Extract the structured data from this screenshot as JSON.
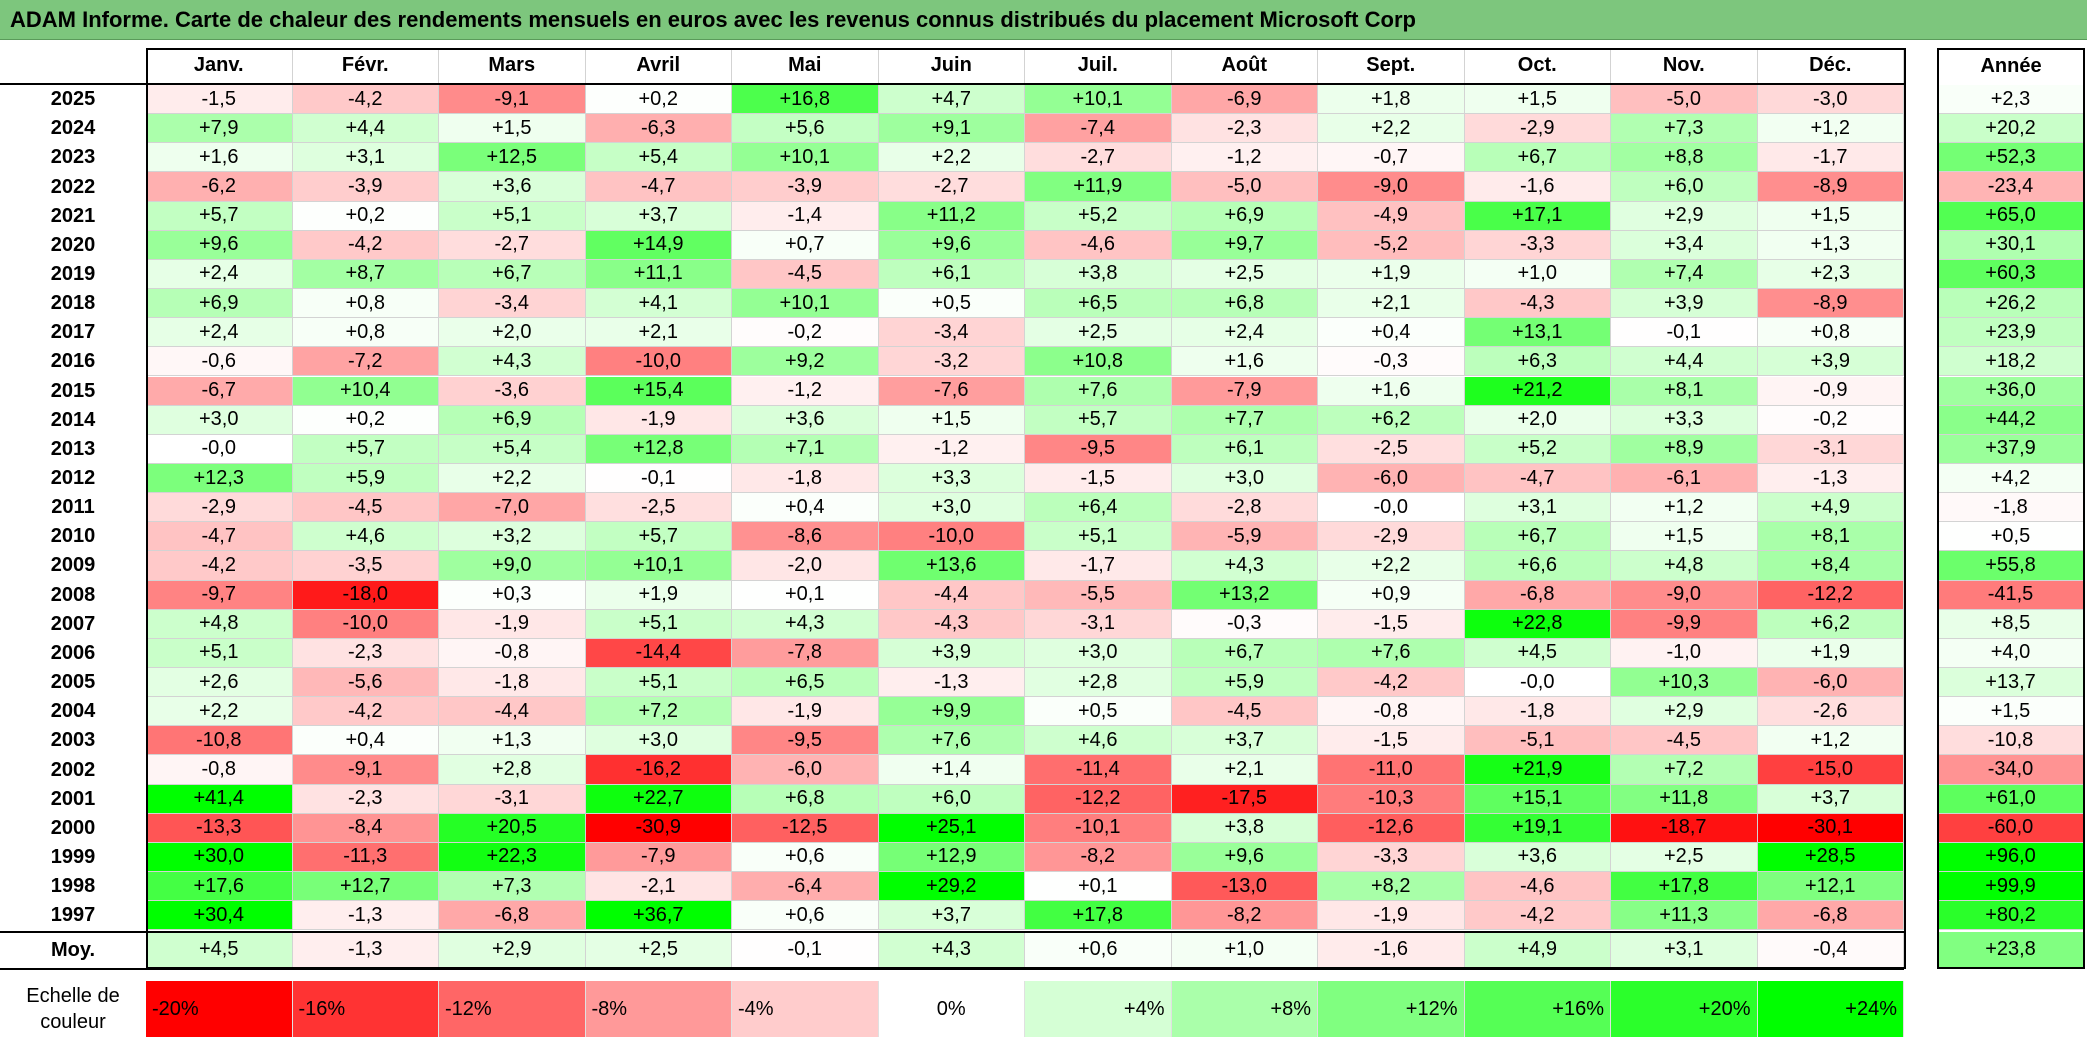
{
  "title": "ADAM Informe. Carte de chaleur des rendements mensuels en euros avec les revenus connus distribués du placement Microsoft Corp",
  "chart_data": {
    "type": "heatmap",
    "title": "ADAM Informe. Carte de chaleur des rendements mensuels en euros avec les revenus connus distribués du placement Microsoft Corp",
    "columns": [
      "Janv.",
      "Févr.",
      "Mars",
      "Avril",
      "Mai",
      "Juin",
      "Juil.",
      "Août",
      "Sept.",
      "Oct.",
      "Nov.",
      "Déc."
    ],
    "year_column_label": "Année",
    "rows": [
      {
        "year": "2025",
        "values": [
          "-1,5",
          "-4,2",
          "-9,1",
          "+0,2",
          "+16,8",
          "+4,7",
          "+10,1",
          "-6,9",
          "+1,8",
          "+1,5",
          "-5,0",
          "-3,0"
        ],
        "annual": "+2,3"
      },
      {
        "year": "2024",
        "values": [
          "+7,9",
          "+4,4",
          "+1,5",
          "-6,3",
          "+5,6",
          "+9,1",
          "-7,4",
          "-2,3",
          "+2,2",
          "-2,9",
          "+7,3",
          "+1,2"
        ],
        "annual": "+20,2"
      },
      {
        "year": "2023",
        "values": [
          "+1,6",
          "+3,1",
          "+12,5",
          "+5,4",
          "+10,1",
          "+2,2",
          "-2,7",
          "-1,2",
          "-0,7",
          "+6,7",
          "+8,8",
          "-1,7"
        ],
        "annual": "+52,3"
      },
      {
        "year": "2022",
        "values": [
          "-6,2",
          "-3,9",
          "+3,6",
          "-4,7",
          "-3,9",
          "-2,7",
          "+11,9",
          "-5,0",
          "-9,0",
          "-1,6",
          "+6,0",
          "-8,9"
        ],
        "annual": "-23,4"
      },
      {
        "year": "2021",
        "values": [
          "+5,7",
          "+0,2",
          "+5,1",
          "+3,7",
          "-1,4",
          "+11,2",
          "+5,2",
          "+6,9",
          "-4,9",
          "+17,1",
          "+2,9",
          "+1,5"
        ],
        "annual": "+65,0"
      },
      {
        "year": "2020",
        "values": [
          "+9,6",
          "-4,2",
          "-2,7",
          "+14,9",
          "+0,7",
          "+9,6",
          "-4,6",
          "+9,7",
          "-5,2",
          "-3,3",
          "+3,4",
          "+1,3"
        ],
        "annual": "+30,1"
      },
      {
        "year": "2019",
        "values": [
          "+2,4",
          "+8,7",
          "+6,7",
          "+11,1",
          "-4,5",
          "+6,1",
          "+3,8",
          "+2,5",
          "+1,9",
          "+1,0",
          "+7,4",
          "+2,3"
        ],
        "annual": "+60,3"
      },
      {
        "year": "2018",
        "values": [
          "+6,9",
          "+0,8",
          "-3,4",
          "+4,1",
          "+10,1",
          "+0,5",
          "+6,5",
          "+6,8",
          "+2,1",
          "-4,3",
          "+3,9",
          "-8,9"
        ],
        "annual": "+26,2"
      },
      {
        "year": "2017",
        "values": [
          "+2,4",
          "+0,8",
          "+2,0",
          "+2,1",
          "-0,2",
          "-3,4",
          "+2,5",
          "+2,4",
          "+0,4",
          "+13,1",
          "-0,1",
          "+0,8"
        ],
        "annual": "+23,9"
      },
      {
        "year": "2016",
        "values": [
          "-0,6",
          "-7,2",
          "+4,3",
          "-10,0",
          "+9,2",
          "-3,2",
          "+10,8",
          "+1,6",
          "-0,3",
          "+6,3",
          "+4,4",
          "+3,9"
        ],
        "annual": "+18,2"
      },
      {
        "year": "2015",
        "values": [
          "-6,7",
          "+10,4",
          "-3,6",
          "+15,4",
          "-1,2",
          "-7,6",
          "+7,6",
          "-7,9",
          "+1,6",
          "+21,2",
          "+8,1",
          "-0,9"
        ],
        "annual": "+36,0"
      },
      {
        "year": "2014",
        "values": [
          "+3,0",
          "+0,2",
          "+6,9",
          "-1,9",
          "+3,6",
          "+1,5",
          "+5,7",
          "+7,7",
          "+6,2",
          "+2,0",
          "+3,3",
          "-0,2"
        ],
        "annual": "+44,2"
      },
      {
        "year": "2013",
        "values": [
          "-0,0",
          "+5,7",
          "+5,4",
          "+12,8",
          "+7,1",
          "-1,2",
          "-9,5",
          "+6,1",
          "-2,5",
          "+5,2",
          "+8,9",
          "-3,1"
        ],
        "annual": "+37,9"
      },
      {
        "year": "2012",
        "values": [
          "+12,3",
          "+5,9",
          "+2,2",
          "-0,1",
          "-1,8",
          "+3,3",
          "-1,5",
          "+3,0",
          "-6,0",
          "-4,7",
          "-6,1",
          "-1,3"
        ],
        "annual": "+4,2"
      },
      {
        "year": "2011",
        "values": [
          "-2,9",
          "-4,5",
          "-7,0",
          "-2,5",
          "+0,4",
          "+3,0",
          "+6,4",
          "-2,8",
          "-0,0",
          "+3,1",
          "+1,2",
          "+4,9"
        ],
        "annual": "-1,8"
      },
      {
        "year": "2010",
        "values": [
          "-4,7",
          "+4,6",
          "+3,2",
          "+5,7",
          "-8,6",
          "-10,0",
          "+5,1",
          "-5,9",
          "-2,9",
          "+6,7",
          "+1,5",
          "+8,1"
        ],
        "annual": "+0,5"
      },
      {
        "year": "2009",
        "values": [
          "-4,2",
          "-3,5",
          "+9,0",
          "+10,1",
          "-2,0",
          "+13,6",
          "-1,7",
          "+4,3",
          "+2,2",
          "+6,6",
          "+4,8",
          "+8,4"
        ],
        "annual": "+55,8"
      },
      {
        "year": "2008",
        "values": [
          "-9,7",
          "-18,0",
          "+0,3",
          "+1,9",
          "+0,1",
          "-4,4",
          "-5,5",
          "+13,2",
          "+0,9",
          "-6,8",
          "-9,0",
          "-12,2"
        ],
        "annual": "-41,5"
      },
      {
        "year": "2007",
        "values": [
          "+4,8",
          "-10,0",
          "-1,9",
          "+5,1",
          "+4,3",
          "-4,3",
          "-3,1",
          "-0,3",
          "-1,5",
          "+22,8",
          "-9,9",
          "+6,2"
        ],
        "annual": "+8,5"
      },
      {
        "year": "2006",
        "values": [
          "+5,1",
          "-2,3",
          "-0,8",
          "-14,4",
          "-7,8",
          "+3,9",
          "+3,0",
          "+6,7",
          "+7,6",
          "+4,5",
          "-1,0",
          "+1,9"
        ],
        "annual": "+4,0"
      },
      {
        "year": "2005",
        "values": [
          "+2,6",
          "-5,6",
          "-1,8",
          "+5,1",
          "+6,5",
          "-1,3",
          "+2,8",
          "+5,9",
          "-4,2",
          "-0,0",
          "+10,3",
          "-6,0"
        ],
        "annual": "+13,7"
      },
      {
        "year": "2004",
        "values": [
          "+2,2",
          "-4,2",
          "-4,4",
          "+7,2",
          "-1,9",
          "+9,9",
          "+0,5",
          "-4,5",
          "-0,8",
          "-1,8",
          "+2,9",
          "-2,6"
        ],
        "annual": "+1,5"
      },
      {
        "year": "2003",
        "values": [
          "-10,8",
          "+0,4",
          "+1,3",
          "+3,0",
          "-9,5",
          "+7,6",
          "+4,6",
          "+3,7",
          "-1,5",
          "-5,1",
          "-4,5",
          "+1,2"
        ],
        "annual": "-10,8"
      },
      {
        "year": "2002",
        "values": [
          "-0,8",
          "-9,1",
          "+2,8",
          "-16,2",
          "-6,0",
          "+1,4",
          "-11,4",
          "+2,1",
          "-11,0",
          "+21,9",
          "+7,2",
          "-15,0"
        ],
        "annual": "-34,0"
      },
      {
        "year": "2001",
        "values": [
          "+41,4",
          "-2,3",
          "-3,1",
          "+22,7",
          "+6,8",
          "+6,0",
          "-12,2",
          "-17,5",
          "-10,3",
          "+15,1",
          "+11,8",
          "+3,7"
        ],
        "annual": "+61,0"
      },
      {
        "year": "2000",
        "values": [
          "-13,3",
          "-8,4",
          "+20,5",
          "-30,9",
          "-12,5",
          "+25,1",
          "-10,1",
          "+3,8",
          "-12,6",
          "+19,1",
          "-18,7",
          "-30,1"
        ],
        "annual": "-60,0"
      },
      {
        "year": "1999",
        "values": [
          "+30,0",
          "-11,3",
          "+22,3",
          "-7,9",
          "+0,6",
          "+12,9",
          "-8,2",
          "+9,6",
          "-3,3",
          "+3,6",
          "+2,5",
          "+28,5"
        ],
        "annual": "+96,0"
      },
      {
        "year": "1998",
        "values": [
          "+17,6",
          "+12,7",
          "+7,3",
          "-2,1",
          "-6,4",
          "+29,2",
          "+0,1",
          "-13,0",
          "+8,2",
          "-4,6",
          "+17,8",
          "+12,1"
        ],
        "annual": "+99,9"
      },
      {
        "year": "1997",
        "values": [
          "+30,4",
          "-1,3",
          "-6,8",
          "+36,7",
          "+0,6",
          "+3,7",
          "+17,8",
          "-8,2",
          "-1,9",
          "-4,2",
          "+11,3",
          "-6,8"
        ],
        "annual": "+80,2"
      }
    ],
    "average": {
      "label": "Moy.",
      "values": [
        "+4,5",
        "-1,3",
        "+2,9",
        "+2,5",
        "-0,1",
        "+4,3",
        "+0,6",
        "+1,0",
        "-1,6",
        "+4,9",
        "+3,1",
        "-0,4"
      ],
      "annual": "+23,8"
    },
    "legend": {
      "label_line1": "Echelle de",
      "label_line2": "couleur",
      "stops": [
        {
          "label": "-20%",
          "value": -20
        },
        {
          "label": "-16%",
          "value": -16
        },
        {
          "label": "-12%",
          "value": -12
        },
        {
          "label": "-8%",
          "value": -8
        },
        {
          "label": "-4%",
          "value": -4
        },
        {
          "label": "0%",
          "value": 0
        },
        {
          "label": "+4%",
          "value": 4
        },
        {
          "label": "+8%",
          "value": 8
        },
        {
          "label": "+12%",
          "value": 12
        },
        {
          "label": "+16%",
          "value": 16
        },
        {
          "label": "+20%",
          "value": 20
        },
        {
          "label": "+24%",
          "value": 24
        }
      ]
    },
    "colors": {
      "negative_max": "#ff0000",
      "zero": "#ffffff",
      "positive_max": "#00ff00",
      "title_bar": "#7dc67d"
    },
    "scale_limits": [
      -20,
      24
    ]
  }
}
